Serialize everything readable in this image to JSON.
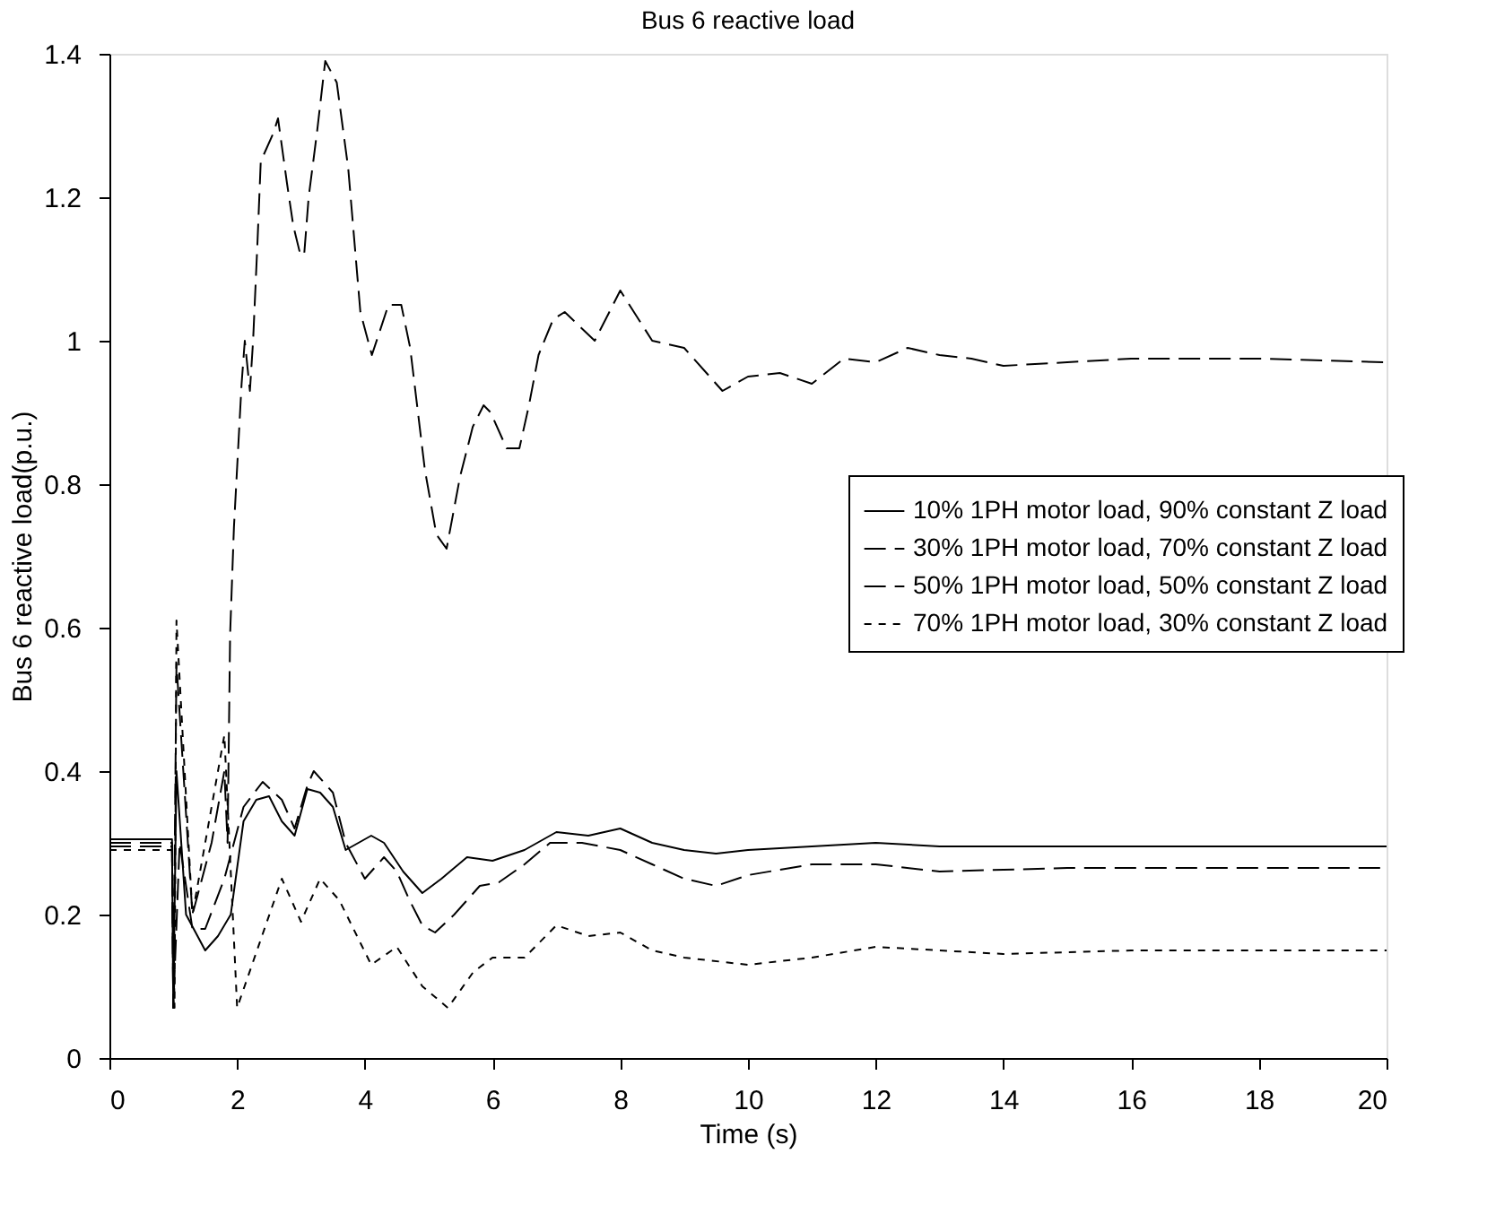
{
  "chart_data": {
    "type": "line",
    "title": "Bus 6 reactive load",
    "xlabel": "Time (s)",
    "ylabel": "Bus 6 reactive load(p.u.)",
    "xlim": [
      0,
      20
    ],
    "xticks": [
      0,
      2,
      4,
      6,
      8,
      10,
      12,
      14,
      16,
      18,
      20
    ],
    "ylim": [
      0,
      1.4
    ],
    "yticks": [
      0,
      0.2,
      0.4,
      0.6,
      0.8,
      1,
      1.2,
      1.4
    ],
    "grid": false,
    "legend": "right",
    "marker": "none",
    "series": [
      {
        "name": "10% 1PH motor load, 90% constant Z load",
        "color": "#000000",
        "line_style": "solid",
        "x": [
          0,
          0.98,
          1.0,
          1.05,
          1.2,
          1.5,
          1.7,
          1.9,
          2.1,
          2.3,
          2.5,
          2.7,
          2.9,
          3.1,
          3.3,
          3.5,
          3.7,
          3.9,
          4.1,
          4.3,
          4.6,
          4.9,
          5.2,
          5.6,
          6.0,
          6.5,
          7.0,
          7.5,
          8,
          8.5,
          9,
          9.5,
          10,
          11,
          12,
          13,
          20
        ],
        "values": [
          0.305,
          0.305,
          0.07,
          0.4,
          0.2,
          0.15,
          0.17,
          0.2,
          0.33,
          0.36,
          0.365,
          0.33,
          0.31,
          0.375,
          0.37,
          0.35,
          0.29,
          0.3,
          0.31,
          0.3,
          0.26,
          0.23,
          0.25,
          0.28,
          0.275,
          0.29,
          0.315,
          0.31,
          0.32,
          0.3,
          0.29,
          0.285,
          0.29,
          0.295,
          0.3,
          0.295,
          0.295
        ]
      },
      {
        "name": "30% 1PH motor load, 70% constant Z load",
        "color": "#000000",
        "line_style": "dashed",
        "x": [
          0,
          0.98,
          1.0,
          1.1,
          1.3,
          1.5,
          1.8,
          2.1,
          2.4,
          2.7,
          2.9,
          3.1,
          3.2,
          3.5,
          3.7,
          4.0,
          4.3,
          4.5,
          4.7,
          4.9,
          5.1,
          5.4,
          5.8,
          6.1,
          6.5,
          6.9,
          7.4,
          8,
          8.5,
          9,
          9.5,
          10,
          11,
          12,
          13,
          15,
          20
        ],
        "values": [
          0.3,
          0.3,
          0.07,
          0.3,
          0.18,
          0.18,
          0.25,
          0.35,
          0.385,
          0.36,
          0.32,
          0.38,
          0.4,
          0.37,
          0.3,
          0.25,
          0.28,
          0.26,
          0.22,
          0.185,
          0.175,
          0.2,
          0.24,
          0.245,
          0.27,
          0.3,
          0.3,
          0.29,
          0.27,
          0.25,
          0.24,
          0.255,
          0.27,
          0.27,
          0.26,
          0.265,
          0.265
        ]
      },
      {
        "name": "50% 1PH motor load, 50% constant Z load",
        "color": "#000000",
        "line_style": "dashed",
        "x": [
          0,
          0.98,
          1.0,
          1.05,
          1.3,
          1.6,
          1.8,
          1.85,
          1.89,
          1.95,
          2.07,
          2.12,
          2.2,
          2.25,
          2.32,
          2.37,
          2.57,
          2.64,
          2.78,
          2.88,
          2.99,
          3.05,
          3.12,
          3.25,
          3.38,
          3.56,
          3.74,
          3.93,
          4.11,
          4.37,
          4.57,
          4.71,
          4.94,
          5.12,
          5.28,
          5.49,
          5.69,
          5.86,
          5.97,
          6.22,
          6.42,
          6.57,
          6.72,
          6.95,
          7.13,
          7.6,
          8.0,
          8.5,
          9,
          9.6,
          10,
          10.5,
          11,
          11.5,
          12,
          12.5,
          13,
          13.5,
          14,
          15,
          16,
          18,
          20
        ],
        "values": [
          0.295,
          0.295,
          0.07,
          0.55,
          0.2,
          0.3,
          0.4,
          0.3,
          0.59,
          0.74,
          0.94,
          1.0,
          0.93,
          1.0,
          1.14,
          1.25,
          1.29,
          1.31,
          1.22,
          1.16,
          1.12,
          1.12,
          1.2,
          1.29,
          1.39,
          1.36,
          1.24,
          1.04,
          0.98,
          1.05,
          1.05,
          0.99,
          0.82,
          0.73,
          0.71,
          0.81,
          0.88,
          0.91,
          0.9,
          0.85,
          0.85,
          0.91,
          0.98,
          1.03,
          1.04,
          1.0,
          1.07,
          1.0,
          0.99,
          0.93,
          0.95,
          0.955,
          0.94,
          0.975,
          0.97,
          0.99,
          0.98,
          0.975,
          0.965,
          0.97,
          0.975,
          0.975,
          0.97
        ]
      },
      {
        "name": "70% 1PH motor load, 30% constant Z load",
        "color": "#000000",
        "line_style": "dotted",
        "x": [
          0,
          0.98,
          1.02,
          1.05,
          1.3,
          1.8,
          2.0,
          2.7,
          3.0,
          3.3,
          3.6,
          4.1,
          4.5,
          4.9,
          5.3,
          5.7,
          6.0,
          6.5,
          7.0,
          7.5,
          8,
          8.5,
          9,
          10,
          11,
          12,
          13,
          14,
          16,
          18,
          20
        ],
        "values": [
          0.29,
          0.29,
          0.07,
          0.61,
          0.2,
          0.45,
          0.07,
          0.25,
          0.19,
          0.25,
          0.22,
          0.13,
          0.155,
          0.1,
          0.07,
          0.12,
          0.14,
          0.14,
          0.185,
          0.17,
          0.175,
          0.15,
          0.14,
          0.13,
          0.14,
          0.155,
          0.15,
          0.145,
          0.15,
          0.15,
          0.15
        ]
      }
    ]
  }
}
